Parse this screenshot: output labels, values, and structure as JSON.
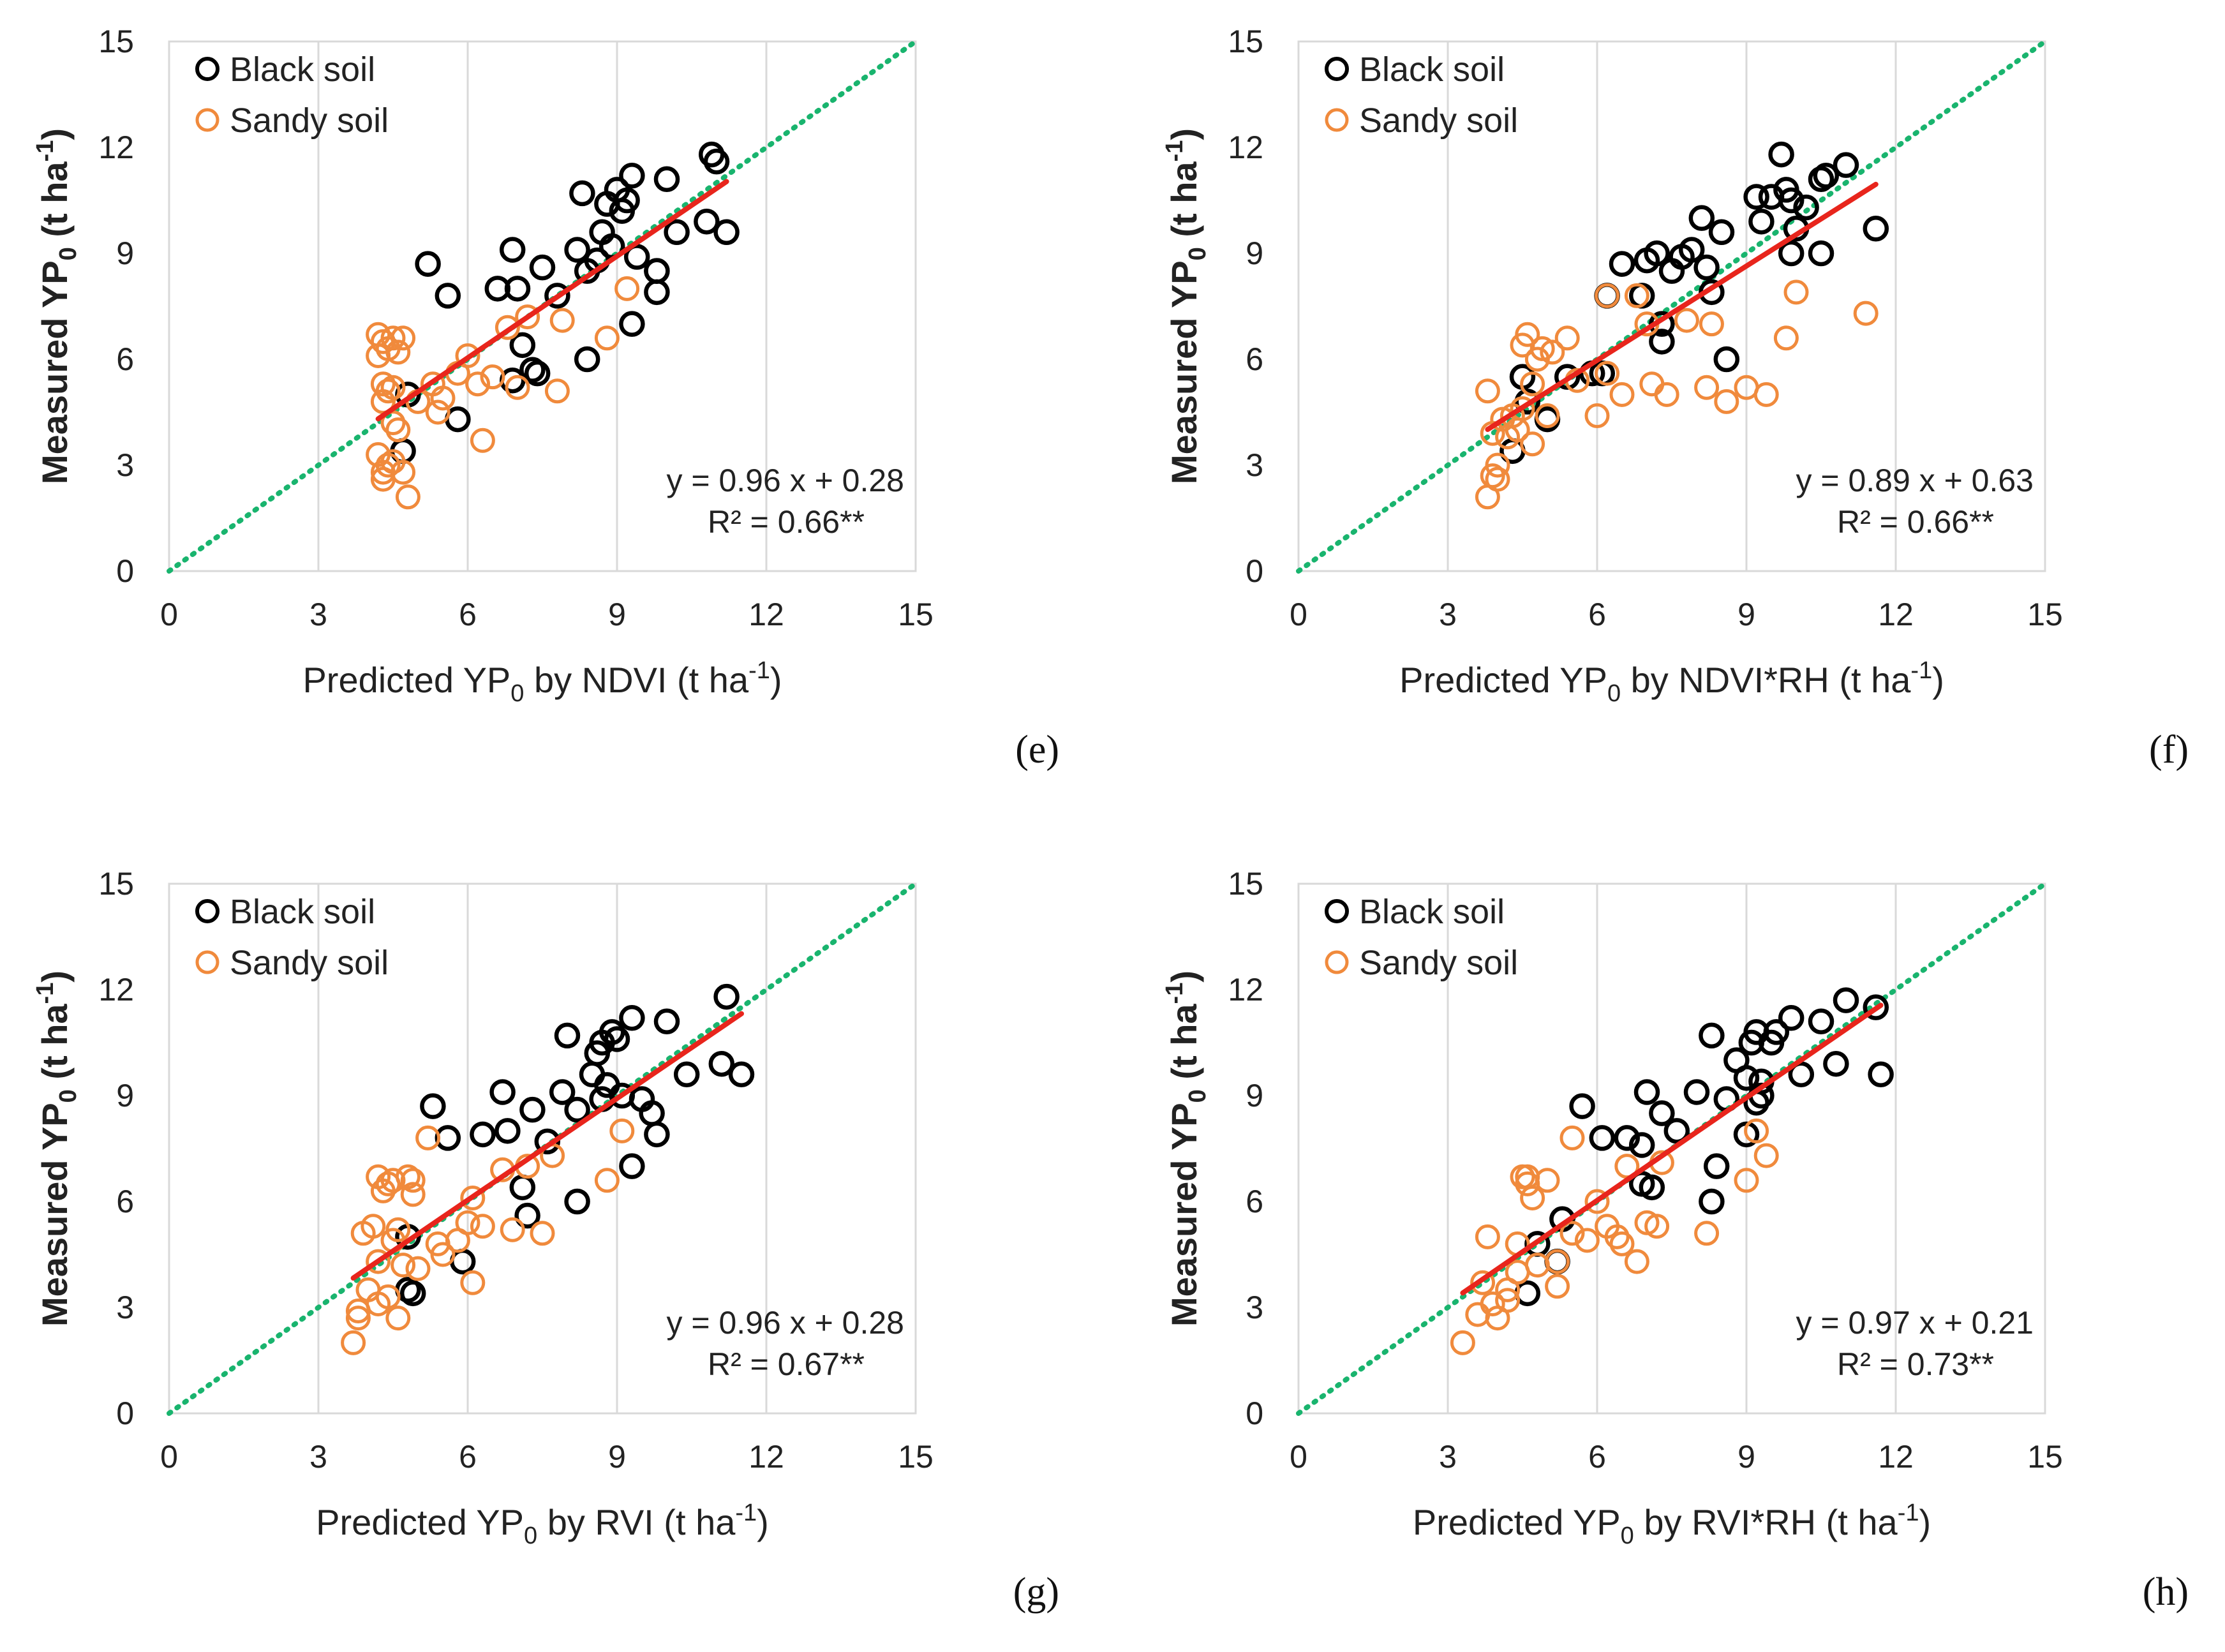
{
  "colors": {
    "black_soil": "#000000",
    "sandy_soil": "#F08A3C",
    "fit_line": "#E8251C",
    "one_to_one": "#19B46E",
    "grid": "#D9D9D9"
  },
  "chart_data": [
    {
      "id": "e",
      "type": "scatter",
      "panel_label": "(e)",
      "xlabel": "Predicted YP",
      "xlabel_sub": "0",
      "xlabel_rest": " by NDVI (t ha",
      "xlabel_sup": "-1",
      "xlabel_end": ")",
      "ylabel": "Measured YP",
      "ylabel_sub": "0",
      "ylabel_rest": " (t ha",
      "ylabel_sup": "-1",
      "ylabel_end": ")",
      "xlim": [
        0,
        15
      ],
      "ylim": [
        0,
        15
      ],
      "xticks": [
        "0",
        "3",
        "6",
        "9",
        "12",
        "15"
      ],
      "yticks": [
        "0",
        "3",
        "6",
        "9",
        "12",
        "15"
      ],
      "legend": [
        "Black soil",
        "Sandy soil"
      ],
      "equation": "y = 0.96 x + 0.28",
      "r2": "R² = 0.66**",
      "fit": {
        "slope": 0.96,
        "intercept": 0.28,
        "x_range": [
          4.2,
          11.2
        ]
      },
      "series": [
        {
          "name": "Black soil",
          "x": [
            5.2,
            5.6,
            6.6,
            6.9,
            7.0,
            7.5,
            7.8,
            8.2,
            8.3,
            8.4,
            8.6,
            8.7,
            8.8,
            8.9,
            9.0,
            9.1,
            9.2,
            9.3,
            9.4,
            9.8,
            10.0,
            10.2,
            10.8,
            10.9,
            11.0,
            11.2,
            7.1,
            7.3,
            8.4,
            9.3,
            9.8,
            9.8,
            6.9,
            7.4,
            5.8,
            4.7,
            4.8
          ],
          "y": [
            8.7,
            7.8,
            8.0,
            9.1,
            8.0,
            8.6,
            7.8,
            9.1,
            10.7,
            8.5,
            8.8,
            9.6,
            10.4,
            9.2,
            10.8,
            10.2,
            10.5,
            11.2,
            8.9,
            8.5,
            11.1,
            9.6,
            9.9,
            11.8,
            11.6,
            9.6,
            6.4,
            5.7,
            6.0,
            7.0,
            7.9,
            8.5,
            5.4,
            5.6,
            4.3,
            3.4,
            5.0
          ]
        },
        {
          "name": "Sandy soil",
          "x": [
            4.2,
            4.3,
            4.4,
            4.5,
            4.2,
            4.3,
            4.6,
            4.7,
            4.4,
            4.3,
            4.5,
            4.6,
            4.2,
            4.7,
            4.8,
            4.3,
            4.5,
            5.0,
            5.3,
            5.5,
            5.8,
            6.0,
            6.2,
            6.5,
            6.8,
            7.0,
            7.2,
            7.9,
            8.8,
            9.2,
            7.8,
            6.3,
            5.4,
            4.5,
            4.4,
            4.3
          ],
          "y": [
            6.7,
            6.5,
            6.3,
            6.6,
            6.1,
            5.3,
            6.2,
            6.6,
            5.1,
            4.8,
            4.2,
            4.0,
            3.3,
            2.8,
            2.1,
            2.8,
            3.1,
            4.8,
            5.3,
            4.9,
            5.6,
            6.1,
            5.3,
            5.5,
            6.9,
            5.2,
            7.2,
            7.1,
            6.6,
            8.0,
            5.1,
            3.7,
            4.5,
            5.2,
            3.0,
            2.6
          ]
        }
      ]
    },
    {
      "id": "f",
      "type": "scatter",
      "panel_label": "(f)",
      "xlabel": "Predicted YP",
      "xlabel_sub": "0",
      "xlabel_rest": " by NDVI*RH (t ha",
      "xlabel_sup": "-1",
      "xlabel_end": ")",
      "ylabel": "Measured YP",
      "ylabel_sub": "0",
      "ylabel_rest": " (t ha",
      "ylabel_sup": "-1",
      "ylabel_end": ")",
      "xlim": [
        0,
        15
      ],
      "ylim": [
        0,
        15
      ],
      "xticks": [
        "0",
        "3",
        "6",
        "9",
        "12",
        "15"
      ],
      "yticks": [
        "0",
        "3",
        "6",
        "9",
        "12",
        "15"
      ],
      "legend": [
        "Black soil",
        "Sandy soil"
      ],
      "equation": "y = 0.89 x + 0.63",
      "r2": "R² = 0.66**",
      "fit": {
        "slope": 0.89,
        "intercept": 0.63,
        "x_range": [
          3.8,
          11.6
        ]
      },
      "series": [
        {
          "name": "Black soil",
          "x": [
            6.5,
            6.9,
            7.0,
            7.2,
            7.5,
            7.7,
            7.9,
            8.1,
            8.2,
            8.3,
            8.5,
            9.2,
            9.3,
            9.5,
            9.7,
            9.8,
            9.9,
            10.0,
            10.2,
            10.5,
            10.6,
            11.0,
            11.6,
            7.3,
            8.6,
            6.2,
            6.1,
            5.9,
            5.4,
            5.0,
            4.6,
            4.5,
            4.3,
            7.3,
            9.9,
            10.5
          ],
          "y": [
            8.7,
            7.8,
            8.8,
            9.0,
            8.5,
            8.9,
            9.1,
            10.0,
            8.6,
            7.9,
            9.6,
            10.6,
            9.9,
            10.6,
            11.8,
            10.8,
            10.5,
            9.7,
            10.3,
            11.1,
            11.2,
            11.5,
            9.7,
            6.5,
            6.0,
            7.8,
            5.6,
            5.6,
            5.5,
            4.3,
            4.8,
            5.5,
            3.4,
            7.0,
            9.0,
            9.0
          ],
          "x2": []
        },
        {
          "name": "Sandy soil",
          "x": [
            3.8,
            3.9,
            4.0,
            3.8,
            4.1,
            4.3,
            4.5,
            4.6,
            4.7,
            4.8,
            4.4,
            4.2,
            4.9,
            5.1,
            5.4,
            5.6,
            6.0,
            6.2,
            6.5,
            6.8,
            7.1,
            7.4,
            7.8,
            8.2,
            8.6,
            9.0,
            9.4,
            9.8,
            10.0,
            11.4,
            6.2,
            7.0,
            5.0,
            4.7,
            4.5,
            4.0,
            3.9,
            8.3
          ],
          "y": [
            2.1,
            2.7,
            3.0,
            5.1,
            4.3,
            4.4,
            6.4,
            6.7,
            5.3,
            6.0,
            4.0,
            3.8,
            6.3,
            6.2,
            6.6,
            5.4,
            4.4,
            5.6,
            5.0,
            7.8,
            5.3,
            5.0,
            7.1,
            5.2,
            4.8,
            5.2,
            5.0,
            6.6,
            7.9,
            7.3,
            7.8,
            7.0,
            4.4,
            3.6,
            4.6,
            2.6,
            3.9,
            7.0
          ]
        }
      ]
    },
    {
      "id": "g",
      "type": "scatter",
      "panel_label": "(g)",
      "xlabel": "Predicted YP",
      "xlabel_sub": "0",
      "xlabel_rest": " by RVI (t ha",
      "xlabel_sup": "-1",
      "xlabel_end": ")",
      "ylabel": "Measured YP",
      "ylabel_sub": "0",
      "ylabel_rest": " (t ha",
      "ylabel_sup": "-1",
      "ylabel_end": ")",
      "xlim": [
        0,
        15
      ],
      "ylim": [
        0,
        15
      ],
      "xticks": [
        "0",
        "3",
        "6",
        "9",
        "12",
        "15"
      ],
      "yticks": [
        "0",
        "3",
        "6",
        "9",
        "12",
        "15"
      ],
      "legend": [
        "Black soil",
        "Sandy soil"
      ],
      "equation": "y = 0.96 x + 0.28",
      "r2": "R² = 0.67**",
      "fit": {
        "slope": 0.96,
        "intercept": 0.28,
        "x_range": [
          3.7,
          11.5
        ]
      },
      "series": [
        {
          "name": "Black soil",
          "x": [
            5.3,
            5.6,
            6.3,
            6.7,
            6.8,
            7.3,
            7.6,
            7.9,
            8.0,
            8.2,
            8.5,
            8.6,
            8.7,
            8.8,
            8.9,
            9.0,
            9.1,
            9.3,
            9.5,
            9.7,
            10.0,
            10.4,
            11.1,
            11.2,
            11.5,
            8.7,
            9.3,
            9.8,
            7.1,
            7.2,
            8.2,
            5.9,
            4.8,
            4.9,
            4.8
          ],
          "y": [
            8.7,
            7.8,
            7.9,
            9.1,
            8.0,
            8.6,
            7.7,
            9.1,
            10.7,
            8.6,
            9.6,
            10.2,
            10.5,
            9.3,
            10.8,
            10.6,
            9.0,
            11.2,
            8.9,
            8.5,
            11.1,
            9.6,
            9.9,
            11.8,
            9.6,
            8.9,
            7.0,
            7.9,
            6.4,
            5.6,
            6.0,
            4.3,
            3.5,
            3.4,
            5.0
          ]
        },
        {
          "name": "Sandy soil",
          "x": [
            3.7,
            3.8,
            3.9,
            4.1,
            4.2,
            4.3,
            4.4,
            4.5,
            4.6,
            4.7,
            4.8,
            4.9,
            5.0,
            4.2,
            4.4,
            4.6,
            4.9,
            5.2,
            5.5,
            5.8,
            6.0,
            6.1,
            6.3,
            6.7,
            6.9,
            7.2,
            7.7,
            8.8,
            9.1,
            7.5,
            6.1,
            5.4,
            4.2,
            4.0,
            3.8,
            4.5
          ],
          "y": [
            2.0,
            2.7,
            5.1,
            5.3,
            6.7,
            6.3,
            6.5,
            6.6,
            2.7,
            4.2,
            6.7,
            6.6,
            4.1,
            3.1,
            3.3,
            5.2,
            6.2,
            7.8,
            4.5,
            4.9,
            5.4,
            6.1,
            5.3,
            6.9,
            5.2,
            7.0,
            7.3,
            6.6,
            8.0,
            5.1,
            3.7,
            4.8,
            4.3,
            3.5,
            2.9,
            4.9
          ]
        }
      ]
    },
    {
      "id": "h",
      "type": "scatter",
      "panel_label": "(h)",
      "xlabel": "Predicted YP",
      "xlabel_sub": "0",
      "xlabel_rest": " by RVI*RH (t ha",
      "xlabel_sup": "-1",
      "xlabel_end": ")",
      "ylabel": "Measured YP",
      "ylabel_sub": "0",
      "ylabel_rest": " (t ha",
      "ylabel_sup": "-1",
      "ylabel_end": ")",
      "xlim": [
        0,
        15
      ],
      "ylim": [
        0,
        15
      ],
      "xticks": [
        "0",
        "3",
        "6",
        "9",
        "12",
        "15"
      ],
      "yticks": [
        "0",
        "3",
        "6",
        "9",
        "12",
        "15"
      ],
      "legend": [
        "Black soil",
        "Sandy soil"
      ],
      "equation": "y = 0.97 x + 0.21",
      "r2": "R² = 0.73**",
      "fit": {
        "slope": 0.97,
        "intercept": 0.21,
        "x_range": [
          3.3,
          11.7
        ]
      },
      "series": [
        {
          "name": "Black soil",
          "x": [
            5.7,
            6.1,
            6.6,
            6.9,
            7.0,
            7.3,
            7.6,
            8.0,
            8.3,
            8.6,
            8.8,
            9.0,
            9.1,
            9.2,
            9.3,
            9.5,
            9.6,
            9.9,
            10.1,
            10.5,
            11.0,
            11.6,
            11.7,
            10.8,
            8.3,
            8.4,
            9.0,
            9.2,
            6.9,
            7.1,
            5.3,
            5.2,
            4.8,
            4.6,
            9.3
          ],
          "y": [
            8.7,
            7.8,
            7.8,
            7.6,
            9.1,
            8.5,
            8.0,
            9.1,
            10.7,
            8.9,
            10.0,
            9.5,
            10.5,
            10.8,
            9.4,
            10.5,
            10.8,
            11.2,
            9.6,
            11.1,
            11.7,
            11.5,
            9.6,
            9.9,
            6.0,
            7.0,
            7.9,
            8.8,
            6.5,
            6.4,
            5.5,
            4.3,
            4.8,
            3.4,
            9.0
          ]
        },
        {
          "name": "Sandy soil",
          "x": [
            3.3,
            3.6,
            3.8,
            3.9,
            4.0,
            4.2,
            4.4,
            4.5,
            4.6,
            4.7,
            4.8,
            5.0,
            5.2,
            5.5,
            5.8,
            6.0,
            6.2,
            6.4,
            6.6,
            6.8,
            7.0,
            7.3,
            8.2,
            9.0,
            9.2,
            9.4,
            7.2,
            6.5,
            5.5,
            5.2,
            4.4,
            4.2,
            3.7,
            4.6
          ],
          "y": [
            2.0,
            2.8,
            5.0,
            3.1,
            2.7,
            3.5,
            4.8,
            6.7,
            6.5,
            6.1,
            4.2,
            6.6,
            4.3,
            7.8,
            4.9,
            6.0,
            5.3,
            5.0,
            7.0,
            4.3,
            5.4,
            7.1,
            5.1,
            6.6,
            8.0,
            7.3,
            5.3,
            4.8,
            5.1,
            3.6,
            4.0,
            3.2,
            3.7,
            6.7
          ]
        }
      ]
    }
  ]
}
